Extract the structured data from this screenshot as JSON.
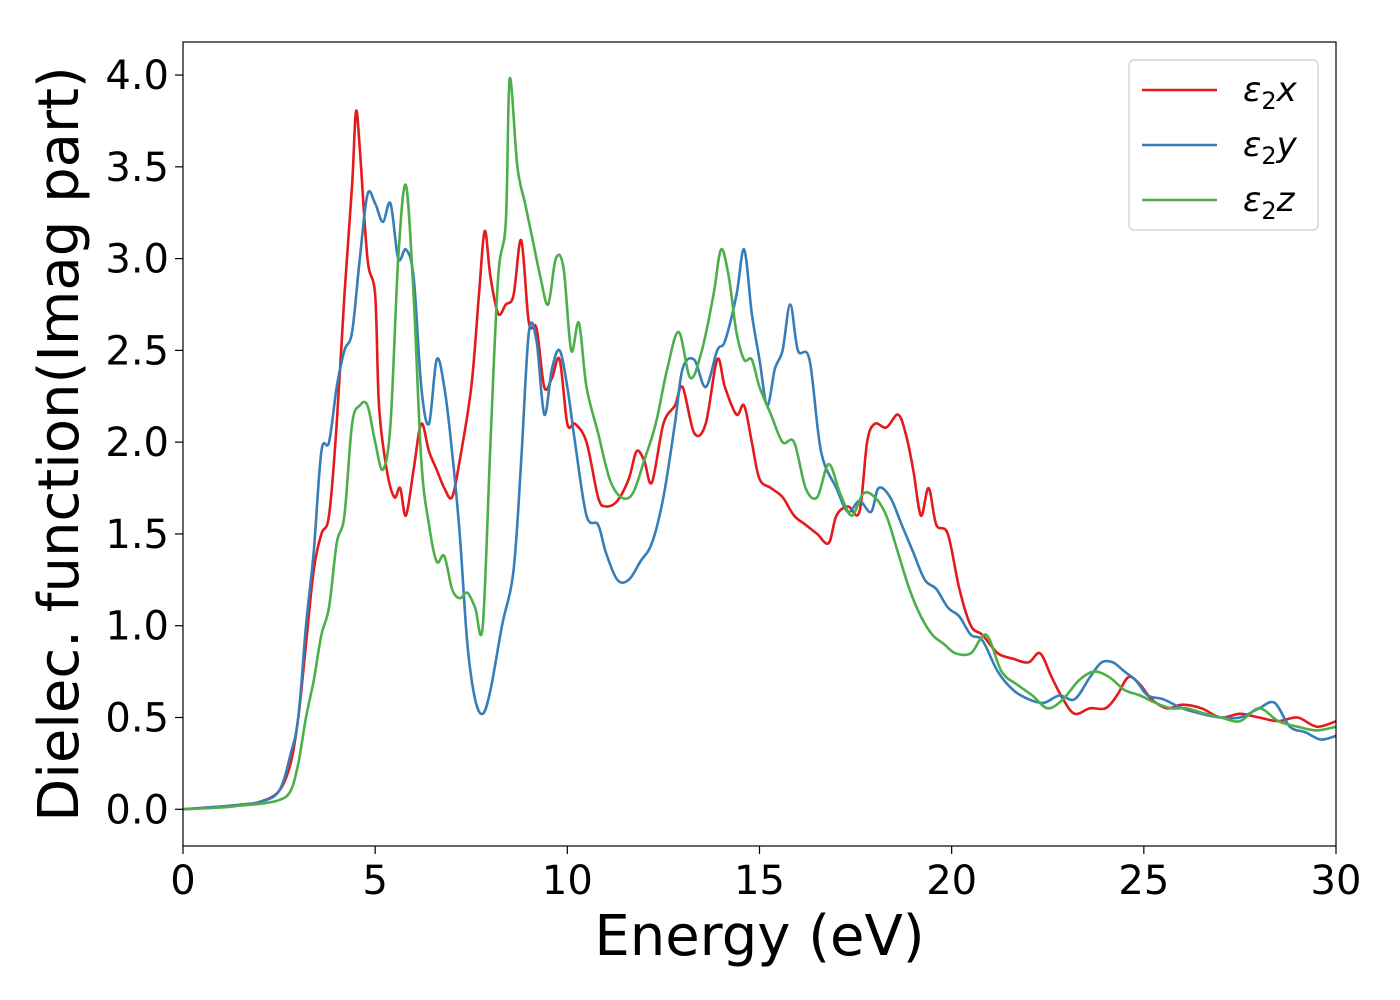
{
  "chart_data": {
    "type": "line",
    "title": "",
    "xlabel": "Energy (eV)",
    "ylabel": "Dielec. function(Imag part)",
    "xlim": [
      0,
      30
    ],
    "ylim": [
      -0.2,
      4.18
    ],
    "xticks": [
      0,
      5,
      10,
      15,
      20,
      25,
      30
    ],
    "xtick_labels": [
      "0",
      "5",
      "10",
      "15",
      "20",
      "25",
      "30"
    ],
    "yticks": [
      0.0,
      0.5,
      1.0,
      1.5,
      2.0,
      2.5,
      3.0,
      3.5,
      4.0
    ],
    "ytick_labels": [
      "0.0",
      "0.5",
      "1.0",
      "1.5",
      "2.0",
      "2.5",
      "3.0",
      "3.5",
      "4.0"
    ],
    "grid": false,
    "legend_position": "top-right",
    "series": [
      {
        "name": "ε₂x",
        "name_base": "ε",
        "name_sub": "2",
        "name_var": "x",
        "color": "#e41a1c",
        "points": [
          [
            0,
            0
          ],
          [
            1,
            0.015
          ],
          [
            1.5,
            0.025
          ],
          [
            2,
            0.04
          ],
          [
            2.5,
            0.1
          ],
          [
            2.8,
            0.25
          ],
          [
            3.0,
            0.5
          ],
          [
            3.2,
            0.9
          ],
          [
            3.4,
            1.3
          ],
          [
            3.6,
            1.5
          ],
          [
            3.8,
            1.6
          ],
          [
            4.0,
            2.1
          ],
          [
            4.2,
            2.8
          ],
          [
            4.4,
            3.4
          ],
          [
            4.5,
            3.8
          ],
          [
            4.6,
            3.6
          ],
          [
            4.8,
            3.0
          ],
          [
            5.0,
            2.8
          ],
          [
            5.1,
            2.2
          ],
          [
            5.3,
            1.85
          ],
          [
            5.5,
            1.7
          ],
          [
            5.65,
            1.75
          ],
          [
            5.8,
            1.6
          ],
          [
            6.0,
            1.85
          ],
          [
            6.2,
            2.1
          ],
          [
            6.4,
            1.95
          ],
          [
            6.6,
            1.85
          ],
          [
            6.8,
            1.75
          ],
          [
            7.0,
            1.7
          ],
          [
            7.2,
            1.9
          ],
          [
            7.5,
            2.3
          ],
          [
            7.7,
            2.8
          ],
          [
            7.85,
            3.15
          ],
          [
            8.0,
            2.9
          ],
          [
            8.2,
            2.7
          ],
          [
            8.4,
            2.75
          ],
          [
            8.6,
            2.8
          ],
          [
            8.8,
            3.1
          ],
          [
            9.0,
            2.65
          ],
          [
            9.2,
            2.62
          ],
          [
            9.4,
            2.3
          ],
          [
            9.6,
            2.35
          ],
          [
            9.8,
            2.45
          ],
          [
            10.0,
            2.1
          ],
          [
            10.2,
            2.1
          ],
          [
            10.5,
            2.0
          ],
          [
            10.8,
            1.7
          ],
          [
            11.0,
            1.65
          ],
          [
            11.3,
            1.68
          ],
          [
            11.6,
            1.8
          ],
          [
            11.8,
            1.95
          ],
          [
            12.0,
            1.9
          ],
          [
            12.2,
            1.78
          ],
          [
            12.5,
            2.1
          ],
          [
            12.8,
            2.2
          ],
          [
            13.0,
            2.3
          ],
          [
            13.3,
            2.05
          ],
          [
            13.6,
            2.1
          ],
          [
            13.9,
            2.45
          ],
          [
            14.1,
            2.3
          ],
          [
            14.4,
            2.15
          ],
          [
            14.6,
            2.2
          ],
          [
            14.8,
            2.0
          ],
          [
            15.0,
            1.8
          ],
          [
            15.3,
            1.75
          ],
          [
            15.6,
            1.7
          ],
          [
            15.9,
            1.6
          ],
          [
            16.2,
            1.55
          ],
          [
            16.5,
            1.5
          ],
          [
            16.8,
            1.45
          ],
          [
            17.0,
            1.6
          ],
          [
            17.3,
            1.65
          ],
          [
            17.6,
            1.62
          ],
          [
            17.8,
            2.0
          ],
          [
            18.0,
            2.1
          ],
          [
            18.3,
            2.08
          ],
          [
            18.6,
            2.15
          ],
          [
            18.8,
            2.05
          ],
          [
            19.0,
            1.85
          ],
          [
            19.2,
            1.6
          ],
          [
            19.4,
            1.75
          ],
          [
            19.6,
            1.55
          ],
          [
            19.9,
            1.5
          ],
          [
            20.2,
            1.2
          ],
          [
            20.5,
            1.0
          ],
          [
            20.8,
            0.95
          ],
          [
            21.2,
            0.85
          ],
          [
            21.6,
            0.82
          ],
          [
            22.0,
            0.8
          ],
          [
            22.3,
            0.85
          ],
          [
            22.6,
            0.72
          ],
          [
            22.9,
            0.6
          ],
          [
            23.2,
            0.52
          ],
          [
            23.6,
            0.55
          ],
          [
            24.0,
            0.55
          ],
          [
            24.3,
            0.62
          ],
          [
            24.6,
            0.72
          ],
          [
            24.9,
            0.68
          ],
          [
            25.2,
            0.6
          ],
          [
            25.6,
            0.55
          ],
          [
            26.0,
            0.57
          ],
          [
            26.5,
            0.55
          ],
          [
            27.0,
            0.5
          ],
          [
            27.5,
            0.52
          ],
          [
            28.0,
            0.5
          ],
          [
            28.5,
            0.48
          ],
          [
            29.0,
            0.5
          ],
          [
            29.5,
            0.45
          ],
          [
            30.0,
            0.48
          ]
        ]
      },
      {
        "name": "ε₂y",
        "name_base": "ε",
        "name_sub": "2",
        "name_var": "y",
        "color": "#377eb8",
        "points": [
          [
            0,
            0
          ],
          [
            1,
            0.015
          ],
          [
            1.5,
            0.025
          ],
          [
            2,
            0.04
          ],
          [
            2.5,
            0.1
          ],
          [
            2.8,
            0.3
          ],
          [
            3.0,
            0.5
          ],
          [
            3.2,
            1.0
          ],
          [
            3.4,
            1.4
          ],
          [
            3.6,
            1.95
          ],
          [
            3.8,
            2.0
          ],
          [
            4.0,
            2.3
          ],
          [
            4.2,
            2.5
          ],
          [
            4.4,
            2.6
          ],
          [
            4.6,
            3.0
          ],
          [
            4.8,
            3.35
          ],
          [
            5.0,
            3.3
          ],
          [
            5.2,
            3.2
          ],
          [
            5.4,
            3.3
          ],
          [
            5.6,
            3.0
          ],
          [
            5.8,
            3.05
          ],
          [
            6.0,
            2.9
          ],
          [
            6.2,
            2.3
          ],
          [
            6.4,
            2.1
          ],
          [
            6.6,
            2.45
          ],
          [
            6.8,
            2.3
          ],
          [
            7.0,
            1.95
          ],
          [
            7.2,
            1.5
          ],
          [
            7.4,
            0.9
          ],
          [
            7.6,
            0.6
          ],
          [
            7.8,
            0.52
          ],
          [
            8.0,
            0.65
          ],
          [
            8.3,
            1.0
          ],
          [
            8.6,
            1.3
          ],
          [
            8.8,
            1.9
          ],
          [
            9.0,
            2.6
          ],
          [
            9.2,
            2.55
          ],
          [
            9.4,
            2.15
          ],
          [
            9.6,
            2.4
          ],
          [
            9.8,
            2.5
          ],
          [
            10.0,
            2.3
          ],
          [
            10.2,
            2.0
          ],
          [
            10.5,
            1.6
          ],
          [
            10.8,
            1.55
          ],
          [
            11.0,
            1.4
          ],
          [
            11.3,
            1.25
          ],
          [
            11.6,
            1.25
          ],
          [
            11.9,
            1.35
          ],
          [
            12.2,
            1.45
          ],
          [
            12.5,
            1.7
          ],
          [
            12.8,
            2.1
          ],
          [
            13.0,
            2.4
          ],
          [
            13.3,
            2.45
          ],
          [
            13.6,
            2.3
          ],
          [
            13.9,
            2.5
          ],
          [
            14.1,
            2.55
          ],
          [
            14.4,
            2.8
          ],
          [
            14.6,
            3.05
          ],
          [
            14.8,
            2.7
          ],
          [
            15.0,
            2.45
          ],
          [
            15.2,
            2.2
          ],
          [
            15.4,
            2.4
          ],
          [
            15.6,
            2.5
          ],
          [
            15.8,
            2.75
          ],
          [
            16.0,
            2.5
          ],
          [
            16.3,
            2.45
          ],
          [
            16.6,
            1.95
          ],
          [
            17.0,
            1.75
          ],
          [
            17.3,
            1.62
          ],
          [
            17.6,
            1.68
          ],
          [
            17.9,
            1.62
          ],
          [
            18.1,
            1.75
          ],
          [
            18.4,
            1.7
          ],
          [
            18.7,
            1.55
          ],
          [
            19.0,
            1.4
          ],
          [
            19.3,
            1.25
          ],
          [
            19.6,
            1.2
          ],
          [
            19.9,
            1.1
          ],
          [
            20.2,
            1.05
          ],
          [
            20.5,
            0.95
          ],
          [
            20.8,
            0.92
          ],
          [
            21.2,
            0.75
          ],
          [
            21.6,
            0.65
          ],
          [
            22.0,
            0.6
          ],
          [
            22.4,
            0.58
          ],
          [
            22.8,
            0.62
          ],
          [
            23.2,
            0.6
          ],
          [
            23.6,
            0.72
          ],
          [
            23.9,
            0.8
          ],
          [
            24.2,
            0.8
          ],
          [
            24.5,
            0.75
          ],
          [
            24.8,
            0.7
          ],
          [
            25.1,
            0.62
          ],
          [
            25.5,
            0.6
          ],
          [
            26.0,
            0.55
          ],
          [
            26.5,
            0.52
          ],
          [
            27.0,
            0.5
          ],
          [
            27.5,
            0.5
          ],
          [
            28.0,
            0.55
          ],
          [
            28.4,
            0.58
          ],
          [
            28.8,
            0.45
          ],
          [
            29.2,
            0.42
          ],
          [
            29.6,
            0.38
          ],
          [
            30.0,
            0.4
          ]
        ]
      },
      {
        "name": "ε₂z",
        "name_base": "ε",
        "name_sub": "2",
        "name_var": "z",
        "color": "#4daf4a",
        "points": [
          [
            0,
            0
          ],
          [
            1,
            0.01
          ],
          [
            1.5,
            0.02
          ],
          [
            2,
            0.03
          ],
          [
            2.5,
            0.05
          ],
          [
            2.8,
            0.1
          ],
          [
            3.0,
            0.25
          ],
          [
            3.2,
            0.5
          ],
          [
            3.4,
            0.7
          ],
          [
            3.6,
            0.95
          ],
          [
            3.8,
            1.1
          ],
          [
            4.0,
            1.45
          ],
          [
            4.2,
            1.6
          ],
          [
            4.4,
            2.1
          ],
          [
            4.6,
            2.2
          ],
          [
            4.8,
            2.2
          ],
          [
            5.0,
            2.0
          ],
          [
            5.2,
            1.85
          ],
          [
            5.4,
            2.1
          ],
          [
            5.6,
            3.0
          ],
          [
            5.8,
            3.4
          ],
          [
            6.0,
            2.8
          ],
          [
            6.2,
            1.9
          ],
          [
            6.4,
            1.55
          ],
          [
            6.6,
            1.35
          ],
          [
            6.8,
            1.38
          ],
          [
            7.0,
            1.2
          ],
          [
            7.2,
            1.15
          ],
          [
            7.4,
            1.18
          ],
          [
            7.6,
            1.1
          ],
          [
            7.8,
            1.0
          ],
          [
            8.0,
            2.0
          ],
          [
            8.2,
            2.9
          ],
          [
            8.4,
            3.2
          ],
          [
            8.5,
            3.98
          ],
          [
            8.7,
            3.5
          ],
          [
            8.9,
            3.3
          ],
          [
            9.1,
            3.1
          ],
          [
            9.3,
            2.9
          ],
          [
            9.5,
            2.75
          ],
          [
            9.7,
            3.0
          ],
          [
            9.9,
            2.95
          ],
          [
            10.1,
            2.5
          ],
          [
            10.3,
            2.65
          ],
          [
            10.5,
            2.3
          ],
          [
            10.8,
            2.05
          ],
          [
            11.1,
            1.8
          ],
          [
            11.4,
            1.7
          ],
          [
            11.7,
            1.72
          ],
          [
            12.0,
            1.9
          ],
          [
            12.3,
            2.1
          ],
          [
            12.6,
            2.4
          ],
          [
            12.9,
            2.6
          ],
          [
            13.2,
            2.35
          ],
          [
            13.5,
            2.5
          ],
          [
            13.8,
            2.8
          ],
          [
            14.0,
            3.05
          ],
          [
            14.2,
            2.9
          ],
          [
            14.4,
            2.6
          ],
          [
            14.6,
            2.45
          ],
          [
            14.8,
            2.45
          ],
          [
            15.0,
            2.3
          ],
          [
            15.3,
            2.15
          ],
          [
            15.6,
            2.0
          ],
          [
            15.9,
            2.0
          ],
          [
            16.2,
            1.75
          ],
          [
            16.5,
            1.7
          ],
          [
            16.8,
            1.88
          ],
          [
            17.1,
            1.72
          ],
          [
            17.4,
            1.6
          ],
          [
            17.7,
            1.72
          ],
          [
            18.0,
            1.7
          ],
          [
            18.3,
            1.6
          ],
          [
            18.6,
            1.4
          ],
          [
            18.9,
            1.2
          ],
          [
            19.2,
            1.05
          ],
          [
            19.5,
            0.95
          ],
          [
            19.8,
            0.9
          ],
          [
            20.1,
            0.85
          ],
          [
            20.5,
            0.85
          ],
          [
            20.9,
            0.95
          ],
          [
            21.3,
            0.75
          ],
          [
            21.7,
            0.68
          ],
          [
            22.1,
            0.62
          ],
          [
            22.5,
            0.55
          ],
          [
            22.9,
            0.6
          ],
          [
            23.3,
            0.7
          ],
          [
            23.7,
            0.75
          ],
          [
            24.1,
            0.72
          ],
          [
            24.5,
            0.65
          ],
          [
            24.9,
            0.62
          ],
          [
            25.3,
            0.58
          ],
          [
            25.7,
            0.55
          ],
          [
            26.1,
            0.55
          ],
          [
            26.6,
            0.52
          ],
          [
            27.0,
            0.5
          ],
          [
            27.5,
            0.48
          ],
          [
            28.0,
            0.55
          ],
          [
            28.5,
            0.48
          ],
          [
            29.0,
            0.45
          ],
          [
            29.5,
            0.43
          ],
          [
            30.0,
            0.45
          ]
        ]
      }
    ]
  }
}
